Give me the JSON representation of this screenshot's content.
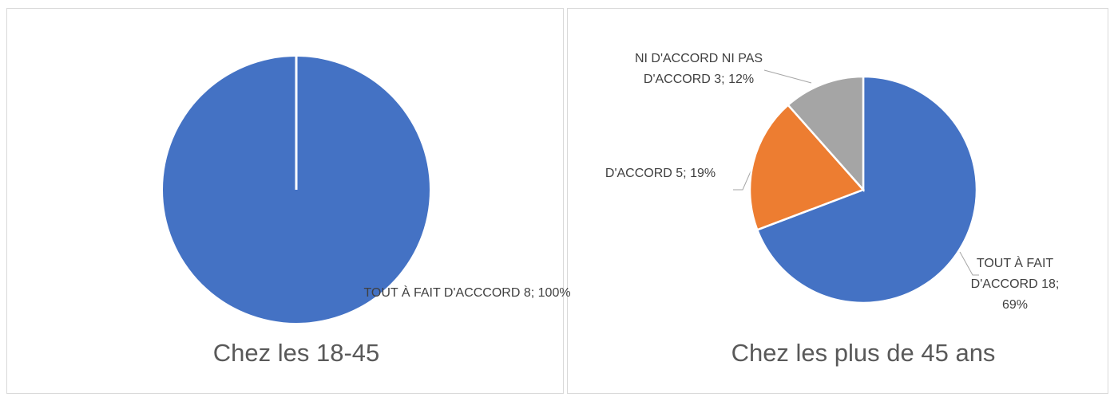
{
  "chart_data": [
    {
      "type": "pie",
      "title": "Chez les 18-45",
      "values": [
        8
      ],
      "value_labels": [
        "TOUT À FAIT D'ACCCORD 8; 100%"
      ],
      "colors": [
        "#4472c4"
      ]
    },
    {
      "type": "pie",
      "title": "Chez les plus de 45 ans",
      "values": [
        18,
        5,
        3
      ],
      "value_labels": [
        "TOUT À FAIT D'ACCORD 18; 69%",
        "D'ACCORD 5; 19%",
        "NI D'ACCORD NI PAS D'ACCORD 3; 12%"
      ],
      "colors": [
        "#4472c4",
        "#ed7d31",
        "#a5a5a5"
      ]
    }
  ]
}
